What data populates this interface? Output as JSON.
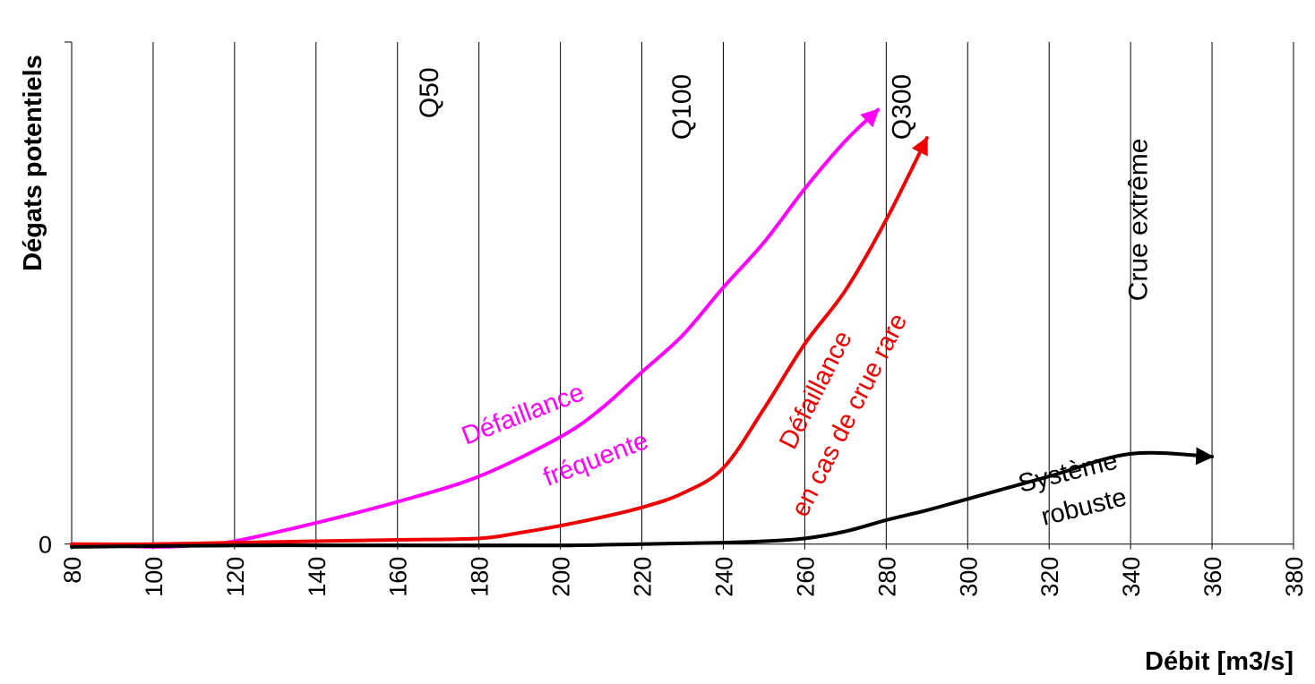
{
  "chart_data": {
    "type": "line",
    "title": "",
    "xlabel": "Débit [m3/s]",
    "ylabel": "Dégats potentiels",
    "xlim": [
      80,
      380
    ],
    "ylim": [
      -0.2,
      17.8
    ],
    "x_ticks": [
      80,
      100,
      120,
      140,
      160,
      180,
      200,
      220,
      240,
      260,
      280,
      300,
      320,
      340,
      360,
      380
    ],
    "y_ticks": [
      {
        "value": 0,
        "label": "0"
      }
    ],
    "grid": "vertical",
    "series": [
      {
        "name": "Défaillance fréquente",
        "label_lines": [
          "Défaillance",
          "fréquente"
        ],
        "color": "#ff00ff",
        "arrow_end": true,
        "x": [
          80,
          100,
          110,
          120,
          140,
          160,
          180,
          200,
          210,
          220,
          230,
          240,
          250,
          260,
          270,
          278
        ],
        "y": [
          0.0,
          -0.1,
          -0.05,
          0.1,
          0.75,
          1.5,
          2.4,
          3.8,
          4.8,
          6.1,
          7.4,
          9.1,
          10.7,
          12.6,
          14.3,
          15.4
        ]
      },
      {
        "name": "Défaillance en cas de crue rare",
        "label_lines": [
          "Défaillance",
          "en cas de crue rare"
        ],
        "color": "#ee0000",
        "arrow_end": true,
        "x": [
          80,
          100,
          120,
          140,
          160,
          180,
          190,
          200,
          210,
          220,
          230,
          240,
          250,
          260,
          270,
          280,
          290
        ],
        "y": [
          0.0,
          0.0,
          0.05,
          0.1,
          0.15,
          0.2,
          0.4,
          0.65,
          0.95,
          1.3,
          1.8,
          2.7,
          4.8,
          7.1,
          9.0,
          11.5,
          14.4
        ]
      },
      {
        "name": "Système robuste",
        "label_lines": [
          "Système",
          "robuste"
        ],
        "color": "#000000",
        "arrow_end": true,
        "x": [
          80,
          120,
          160,
          200,
          220,
          240,
          250,
          260,
          270,
          280,
          290,
          300,
          320,
          340,
          360
        ],
        "y": [
          -0.1,
          -0.05,
          -0.05,
          -0.05,
          0.0,
          0.05,
          0.1,
          0.2,
          0.45,
          0.85,
          1.2,
          1.6,
          2.4,
          3.2,
          3.1
        ]
      }
    ],
    "annotations": [
      {
        "text": "Q50",
        "x": 170,
        "y": 16.0,
        "rotation": -90
      },
      {
        "text": "Q100",
        "x": 232,
        "y": 15.5,
        "rotation": -90
      },
      {
        "text": "Q300",
        "x": 286,
        "y": 15.5,
        "rotation": -90
      },
      {
        "text": "Crue extrême",
        "x": 344,
        "y": 11.5,
        "rotation": -90
      }
    ]
  }
}
